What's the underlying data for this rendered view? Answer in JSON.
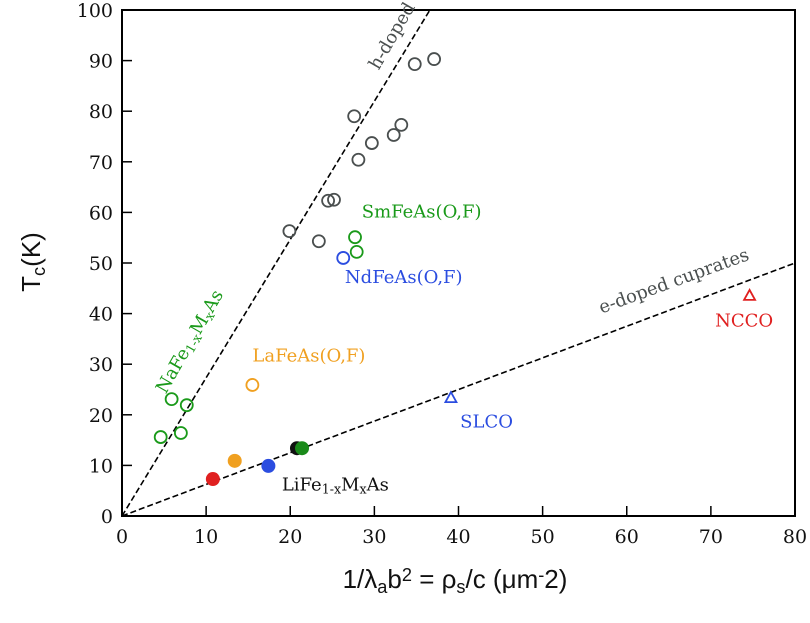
{
  "chart_data": {
    "type": "scatter",
    "title": "",
    "xlabel": "1/λ_ab^2 = ρ_s/c (μm^-2)",
    "ylabel": "T_c(K)",
    "xlim": [
      0,
      80
    ],
    "ylim": [
      0,
      100
    ],
    "xticks": [
      0,
      10,
      20,
      30,
      40,
      50,
      60,
      70,
      80
    ],
    "yticks": [
      0,
      10,
      20,
      30,
      40,
      50,
      60,
      70,
      80,
      90,
      100
    ],
    "grid": false,
    "legend": "none",
    "lines": [
      {
        "label": "h-doped cuprates",
        "from": [
          0,
          0
        ],
        "to": [
          36.6,
          100
        ],
        "style": "dashed",
        "color": "#000000"
      },
      {
        "label": "e-doped cuprates",
        "from": [
          0,
          0
        ],
        "to": [
          80,
          50
        ],
        "style": "dashed",
        "color": "#000000"
      }
    ],
    "series": [
      {
        "group": "h-doped cuprates",
        "marker": "open-circle",
        "color": "#4a4f4f",
        "points": [
          [
            19.9,
            56.3
          ],
          [
            23.4,
            54.3
          ],
          [
            24.5,
            62.3
          ],
          [
            25.2,
            62.5
          ],
          [
            28.1,
            70.4
          ],
          [
            29.7,
            73.7
          ],
          [
            27.6,
            79.0
          ],
          [
            32.3,
            75.3
          ],
          [
            33.2,
            77.3
          ],
          [
            34.8,
            89.3
          ],
          [
            37.1,
            90.3
          ]
        ]
      },
      {
        "group": "SmFeAs(O,F)",
        "marker": "open-circle",
        "color": "#1a9a1a",
        "points": [
          [
            27.7,
            55.1
          ],
          [
            27.9,
            52.2
          ]
        ]
      },
      {
        "group": "NdFeAs(O,F)",
        "marker": "open-circle",
        "color": "#2b4de0",
        "points": [
          [
            26.3,
            51.0
          ]
        ]
      },
      {
        "group": "NaFe_{1-x}M_{x}As",
        "marker": "open-circle",
        "color": "#1a9a1a",
        "points": [
          [
            4.6,
            15.6
          ],
          [
            5.9,
            23.1
          ],
          [
            7.7,
            21.9
          ],
          [
            7.0,
            16.4
          ]
        ]
      },
      {
        "group": "LaFeAs(O,F)",
        "marker": "open-circle",
        "color": "#f0a020",
        "points": [
          [
            15.5,
            25.9
          ]
        ]
      },
      {
        "group": "LiFe_{1-x}M_{x}As",
        "marker": "filled-circle",
        "color": "#e02020",
        "points": [
          [
            10.8,
            7.3
          ]
        ]
      },
      {
        "group": "LiFe_{1-x}M_{x}As",
        "marker": "filled-circle",
        "color": "#f0a020",
        "points": [
          [
            13.4,
            10.9
          ]
        ]
      },
      {
        "group": "LiFe_{1-x}M_{x}As",
        "marker": "filled-circle",
        "color": "#2b4de0",
        "points": [
          [
            17.4,
            9.9
          ]
        ]
      },
      {
        "group": "LiFe_{1-x}M_{x}As",
        "marker": "filled-circle",
        "color": "#111111",
        "points": [
          [
            20.8,
            13.4
          ]
        ]
      },
      {
        "group": "LiFe_{1-x}M_{x}As",
        "marker": "filled-circle",
        "color": "#1a8a1a",
        "points": [
          [
            21.4,
            13.4
          ]
        ]
      },
      {
        "group": "SLCO",
        "marker": "open-triangle",
        "color": "#2b4de0",
        "points": [
          [
            39.1,
            23.3
          ]
        ]
      },
      {
        "group": "NCCO",
        "marker": "open-triangle",
        "color": "#e02020",
        "points": [
          [
            74.6,
            43.5
          ]
        ]
      }
    ],
    "annotations": [
      {
        "text": "h-doped cuprates",
        "at": [
          30.5,
          88
        ],
        "rotate": -60,
        "color": "#4a4f4f"
      },
      {
        "text": "e-doped cuprates",
        "at": [
          57,
          40
        ],
        "rotate": -20,
        "color": "#4a4f4f"
      },
      {
        "text": "SmFeAs(O,F)",
        "at": [
          28.5,
          59
        ],
        "rotate": 0,
        "color": "#1a9a1a"
      },
      {
        "text": "NdFeAs(O,F)",
        "at": [
          26.5,
          46
        ],
        "rotate": 0,
        "color": "#2b4de0"
      },
      {
        "text": "NaFe_{1-x}M_{x}As",
        "at": [
          5.2,
          24
        ],
        "rotate": -60,
        "color": "#1a9a1a"
      },
      {
        "text": "LaFeAs(O,F)",
        "at": [
          15.5,
          30.5
        ],
        "rotate": 0,
        "color": "#f0a020"
      },
      {
        "text": "LiFe_{1-x}M_{x}As",
        "at": [
          19.0,
          5
        ],
        "rotate": 0,
        "color": "#111111"
      },
      {
        "text": "SLCO",
        "at": [
          40.2,
          17.5
        ],
        "rotate": 0,
        "color": "#2b4de0"
      },
      {
        "text": "NCCO",
        "at": [
          70.5,
          37.5
        ],
        "rotate": 0,
        "color": "#e02020"
      }
    ]
  }
}
